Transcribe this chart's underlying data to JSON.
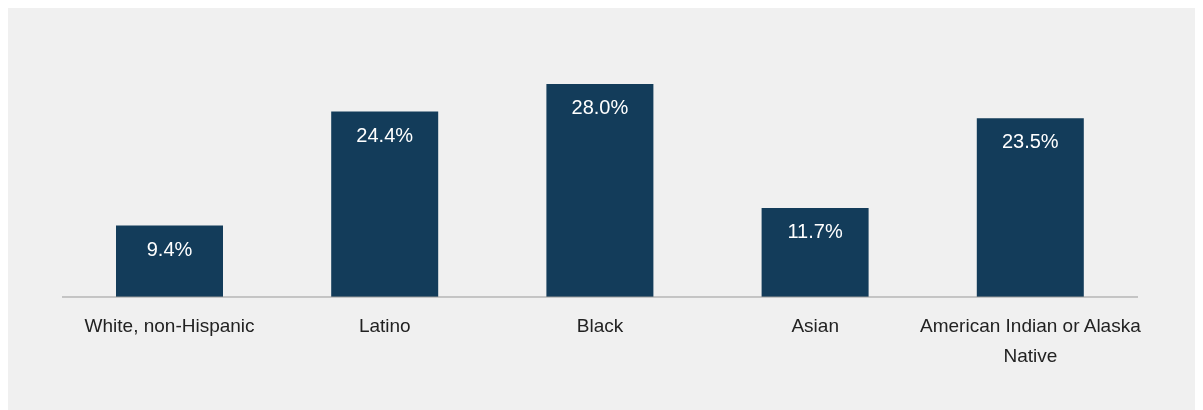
{
  "chart_data": {
    "type": "bar",
    "categories": [
      "White, non-Hispanic",
      "Latino",
      "Black",
      "Asian",
      "American Indian or Alaska Native"
    ],
    "values": [
      9.4,
      24.4,
      28.0,
      11.7,
      23.5
    ],
    "color": "#133c5a",
    "data_labels": true,
    "value_labels": [
      "9.4%",
      "24.4%",
      "28.0%",
      "11.7%",
      "23.5%"
    ]
  }
}
